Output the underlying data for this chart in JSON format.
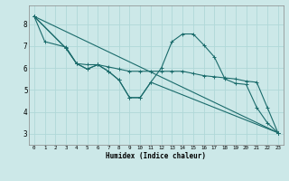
{
  "xlabel": "Humidex (Indice chaleur)",
  "bg_color": "#cce8e8",
  "line_color": "#1a6b6b",
  "grid_color": "#b0d8d8",
  "xlim": [
    -0.5,
    23.5
  ],
  "ylim": [
    2.5,
    8.85
  ],
  "xticks": [
    0,
    1,
    2,
    3,
    4,
    5,
    6,
    7,
    8,
    9,
    10,
    11,
    12,
    13,
    14,
    15,
    16,
    17,
    18,
    19,
    20,
    21,
    22,
    23
  ],
  "yticks": [
    3,
    4,
    5,
    6,
    7,
    8
  ],
  "line1_x": [
    0,
    1,
    3,
    4,
    5,
    6,
    7,
    8,
    9,
    10,
    11,
    12,
    13,
    14,
    15,
    16,
    17,
    18,
    19,
    20,
    21,
    22,
    23
  ],
  "line1_y": [
    8.35,
    7.2,
    6.95,
    6.2,
    5.95,
    6.15,
    5.85,
    5.45,
    4.65,
    4.65,
    5.35,
    6.0,
    7.2,
    7.55,
    7.55,
    7.05,
    6.5,
    5.5,
    5.3,
    5.25,
    4.2,
    3.5,
    3.05
  ],
  "line2_x": [
    0,
    3,
    4,
    5,
    6,
    7,
    8,
    9,
    10,
    11,
    12,
    13,
    14,
    15,
    16,
    17,
    18,
    19,
    20,
    21,
    22,
    23
  ],
  "line2_y": [
    8.35,
    6.9,
    6.2,
    6.15,
    6.15,
    6.05,
    5.95,
    5.85,
    5.85,
    5.85,
    5.85,
    5.85,
    5.85,
    5.75,
    5.65,
    5.6,
    5.55,
    5.5,
    5.4,
    5.35,
    4.2,
    3.05
  ],
  "line3_x": [
    0,
    3,
    4,
    5,
    6,
    7,
    8,
    9,
    10,
    11,
    23
  ],
  "line3_y": [
    8.35,
    6.9,
    6.2,
    5.95,
    6.15,
    5.85,
    5.45,
    4.65,
    4.65,
    5.35,
    3.05
  ],
  "line4_x": [
    0,
    23
  ],
  "line4_y": [
    8.35,
    3.05
  ]
}
